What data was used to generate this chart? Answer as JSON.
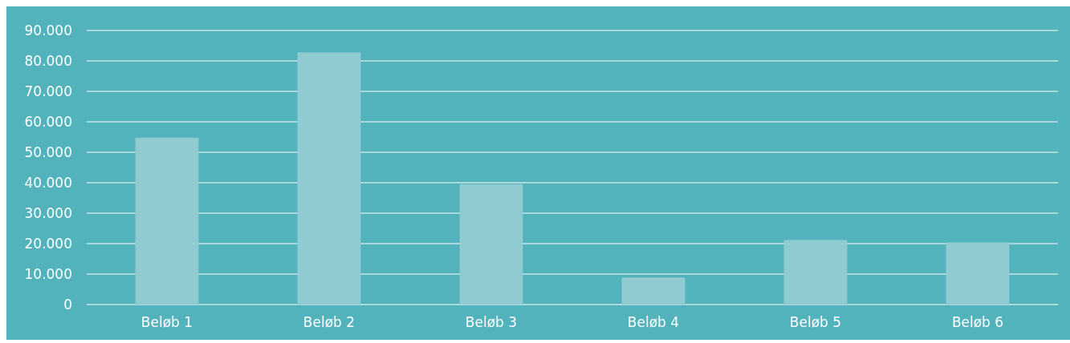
{
  "chart_data": {
    "type": "bar",
    "categories": [
      "Beløb 1",
      "Beløb 2",
      "Beløb 3",
      "Beløb 4",
      "Beløb 5",
      "Beløb 6"
    ],
    "values": [
      54800,
      82800,
      39500,
      8900,
      21200,
      20400
    ],
    "color": "#8fcbd1",
    "ylim": [
      0,
      90000
    ],
    "yticks": [
      0,
      {
        "value": 10000,
        "label": "10.000"
      },
      {
        "value": 20000,
        "label": "20.000"
      },
      {
        "value": 30000,
        "label": "30.000"
      },
      {
        "value": 40000,
        "label": "40.000"
      },
      {
        "value": 50000,
        "label": "50.000"
      },
      {
        "value": 60000,
        "label": "60.000"
      },
      {
        "value": 70000,
        "label": "70.000"
      },
      {
        "value": 80000,
        "label": "80.000"
      },
      {
        "value": 90000,
        "label": "90.000"
      }
    ],
    "grid": "y"
  }
}
